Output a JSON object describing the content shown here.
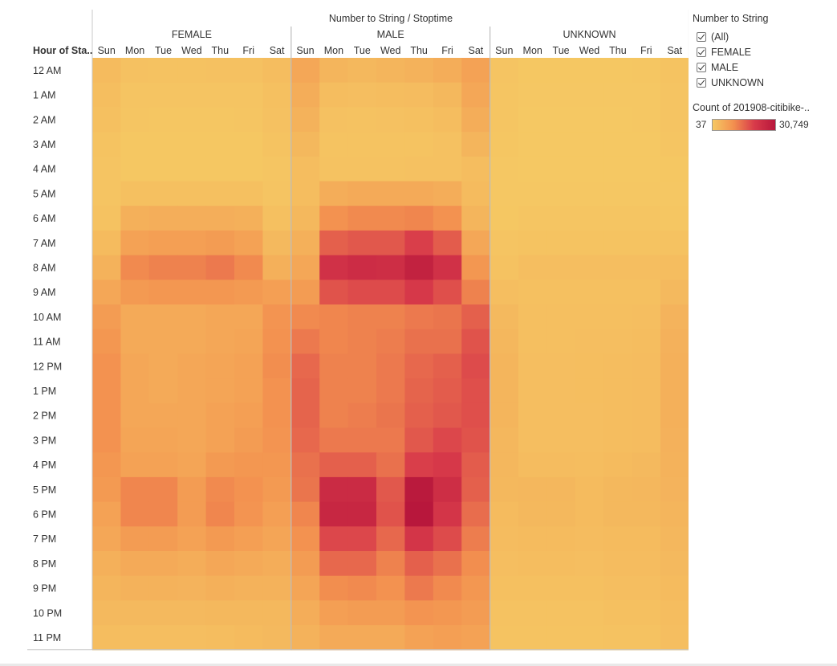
{
  "chart_data": {
    "type": "heatmap",
    "title": "Number to String / Stoptime",
    "row_header": "Hour of Sta..",
    "groups": [
      "FEMALE",
      "MALE",
      "UNKNOWN"
    ],
    "days": [
      "Sun",
      "Mon",
      "Tue",
      "Wed",
      "Thu",
      "Fri",
      "Sat"
    ],
    "rows": [
      "12 AM",
      "1 AM",
      "2 AM",
      "3 AM",
      "4 AM",
      "5 AM",
      "6 AM",
      "7 AM",
      "8 AM",
      "9 AM",
      "10 AM",
      "11 AM",
      "12 PM",
      "1 PM",
      "2 PM",
      "3 PM",
      "4 PM",
      "5 PM",
      "6 PM",
      "7 PM",
      "8 PM",
      "9 PM",
      "10 PM",
      "11 PM"
    ],
    "color_range": [
      37,
      30749
    ],
    "color_scale": [
      "#f5c863",
      "#f3904f",
      "#d83a4a",
      "#b8173c"
    ],
    "values": {
      "FEMALE": [
        [
          2500,
          1300,
          1200,
          1200,
          1300,
          1300,
          2000
        ],
        [
          1900,
          800,
          700,
          700,
          700,
          800,
          1500
        ],
        [
          1500,
          500,
          400,
          400,
          400,
          500,
          1300
        ],
        [
          1000,
          300,
          300,
          300,
          300,
          300,
          900
        ],
        [
          700,
          300,
          300,
          300,
          300,
          300,
          600
        ],
        [
          700,
          1500,
          1500,
          1500,
          1500,
          1500,
          800
        ],
        [
          1200,
          4500,
          4800,
          4800,
          4800,
          4500,
          1500
        ],
        [
          2500,
          7000,
          7500,
          7500,
          8000,
          7000,
          2800
        ],
        [
          4000,
          11000,
          12000,
          12000,
          13000,
          11000,
          4500
        ],
        [
          6000,
          8500,
          9000,
          9000,
          9000,
          8500,
          7500
        ],
        [
          8000,
          5500,
          5500,
          5500,
          6000,
          6000,
          9500
        ],
        [
          9000,
          5500,
          5500,
          5500,
          6000,
          6500,
          10000
        ],
        [
          10000,
          6000,
          5500,
          6000,
          6500,
          7000,
          10500
        ],
        [
          10000,
          6000,
          5500,
          6000,
          6500,
          7000,
          10000
        ],
        [
          10000,
          6000,
          6000,
          6000,
          7000,
          7500,
          10000
        ],
        [
          10000,
          6500,
          6500,
          6000,
          7000,
          8000,
          9500
        ],
        [
          9000,
          7000,
          7000,
          6500,
          8500,
          9000,
          9000
        ],
        [
          8500,
          11500,
          11500,
          8000,
          11000,
          10000,
          8500
        ],
        [
          7000,
          11500,
          11500,
          8000,
          11500,
          9500,
          7500
        ],
        [
          6000,
          8000,
          8000,
          7000,
          8500,
          7500,
          6500
        ],
        [
          4500,
          5500,
          5500,
          5000,
          6000,
          5500,
          5000
        ],
        [
          3500,
          4000,
          4000,
          3800,
          4500,
          4000,
          4000
        ],
        [
          2800,
          2800,
          2800,
          2800,
          3000,
          3000,
          3000
        ],
        [
          2000,
          1800,
          1800,
          1800,
          2000,
          2500,
          2800
        ]
      ],
      "MALE": [
        [
          6000,
          3500,
          3000,
          3500,
          4000,
          5000,
          7000
        ],
        [
          5000,
          2000,
          1800,
          2000,
          2200,
          3000,
          6000
        ],
        [
          4000,
          1300,
          1200,
          1300,
          1500,
          2000,
          5000
        ],
        [
          3000,
          900,
          900,
          900,
          1000,
          1300,
          3500
        ],
        [
          2000,
          1200,
          1200,
          1200,
          1300,
          1300,
          2000
        ],
        [
          2000,
          5000,
          5500,
          5500,
          5500,
          5000,
          2500
        ],
        [
          3000,
          10000,
          11000,
          11000,
          11500,
          10000,
          3500
        ],
        [
          4500,
          16000,
          17000,
          17000,
          20000,
          16500,
          6000
        ],
        [
          6000,
          23000,
          24500,
          24000,
          27500,
          23000,
          9000
        ],
        [
          8000,
          17500,
          18500,
          18500,
          21000,
          18000,
          12000
        ],
        [
          11000,
          11500,
          12000,
          12000,
          13000,
          13500,
          16000
        ],
        [
          13000,
          11500,
          12000,
          12500,
          14000,
          14000,
          17500
        ],
        [
          15000,
          12000,
          12000,
          13000,
          15000,
          16000,
          18500
        ],
        [
          15500,
          12000,
          12000,
          13000,
          15500,
          16500,
          18000
        ],
        [
          15500,
          12000,
          12500,
          13500,
          16000,
          17000,
          18000
        ],
        [
          15000,
          13000,
          13000,
          13000,
          17000,
          19000,
          17500
        ],
        [
          14000,
          16000,
          16000,
          14000,
          20000,
          21000,
          16500
        ],
        [
          13500,
          25000,
          25000,
          17000,
          30000,
          24000,
          16000
        ],
        [
          11500,
          26000,
          26000,
          17500,
          30749,
          22000,
          14500
        ],
        [
          10000,
          19000,
          19000,
          15000,
          22000,
          18500,
          12500
        ],
        [
          8000,
          15000,
          15000,
          12000,
          16000,
          14000,
          10500
        ],
        [
          6500,
          10500,
          11000,
          10000,
          13000,
          11000,
          9000
        ],
        [
          5000,
          7500,
          8000,
          8000,
          9500,
          9000,
          8000
        ],
        [
          4000,
          5500,
          5500,
          5500,
          7000,
          7500,
          7000
        ]
      ],
      "UNKNOWN": [
        [
          800,
          300,
          300,
          300,
          300,
          400,
          900
        ],
        [
          600,
          200,
          150,
          150,
          200,
          250,
          800
        ],
        [
          500,
          100,
          100,
          100,
          120,
          150,
          700
        ],
        [
          400,
          60,
          50,
          50,
          60,
          80,
          500
        ],
        [
          250,
          50,
          37,
          40,
          50,
          60,
          300
        ],
        [
          200,
          200,
          200,
          200,
          200,
          200,
          250
        ],
        [
          300,
          600,
          600,
          600,
          600,
          600,
          400
        ],
        [
          700,
          1000,
          1000,
          1000,
          1000,
          1000,
          1200
        ],
        [
          1200,
          1800,
          1800,
          1800,
          1800,
          1800,
          2000
        ],
        [
          1800,
          1500,
          1500,
          1500,
          1500,
          1500,
          2800
        ],
        [
          2800,
          1600,
          1600,
          1600,
          1600,
          1800,
          3800
        ],
        [
          3200,
          1600,
          1600,
          1800,
          1800,
          2000,
          4200
        ],
        [
          3500,
          1800,
          1800,
          1900,
          2000,
          2200,
          4500
        ],
        [
          3500,
          1800,
          1800,
          1900,
          2000,
          2200,
          4500
        ],
        [
          3500,
          1800,
          1800,
          1800,
          2000,
          2200,
          4500
        ],
        [
          3200,
          1800,
          1800,
          1800,
          2000,
          2200,
          4200
        ],
        [
          3200,
          2200,
          2200,
          2000,
          2500,
          2800,
          4000
        ],
        [
          3000,
          3200,
          3200,
          2500,
          3000,
          3200,
          3800
        ],
        [
          2500,
          3000,
          3000,
          2500,
          3000,
          3000,
          3500
        ],
        [
          2200,
          2500,
          2500,
          2200,
          2500,
          2500,
          3200
        ],
        [
          1800,
          2000,
          2000,
          1800,
          2200,
          2200,
          2800
        ],
        [
          1500,
          1500,
          1500,
          1500,
          1800,
          1800,
          2500
        ],
        [
          1200,
          1200,
          1200,
          1200,
          1500,
          1500,
          2000
        ],
        [
          1000,
          900,
          900,
          900,
          1200,
          1200,
          1800
        ]
      ]
    }
  },
  "legend": {
    "filter_title": "Number to String",
    "filter_items": [
      "(All)",
      "FEMALE",
      "MALE",
      "UNKNOWN"
    ],
    "color_title": "Count of 201908-citibike-..",
    "color_min": "37",
    "color_max": "30,749"
  }
}
